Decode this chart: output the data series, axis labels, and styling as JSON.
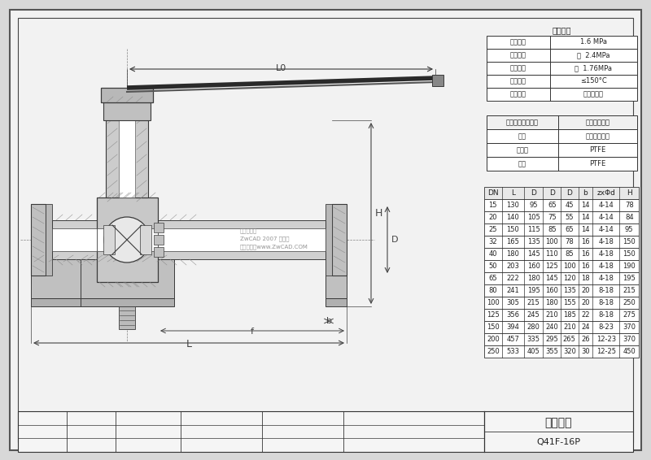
{
  "bg_color": "#d8d8d8",
  "paper_color": "#f2f2f2",
  "line_color": "#3a3a3a",
  "perf_table_title": "性能规范",
  "perf_rows": [
    [
      "公称压力",
      "1.6 MPa"
    ],
    [
      "壳体试验",
      "水  2.4MPa"
    ],
    [
      "密封试验",
      "水  1.76MPa"
    ],
    [
      "适用温度",
      "≤150°C"
    ],
    [
      "适用介质",
      "腐蚀性介质"
    ]
  ],
  "material_headers": [
    "阀体、阀盖、阀阀",
    "奥氏体不锈钢"
  ],
  "material_rows": [
    [
      "阀杆",
      "奥氏体不锈钢"
    ],
    [
      "密封面",
      "PTFE"
    ],
    [
      "填料",
      "PTFE"
    ]
  ],
  "dim_header_special": [
    "DN",
    "L",
    "D",
    "D",
    "D",
    "b",
    "zxΦd",
    "H"
  ],
  "dim_data": [
    [
      "15",
      "130",
      "95",
      "65",
      "45",
      "14",
      "4-14",
      "78"
    ],
    [
      "20",
      "140",
      "105",
      "75",
      "55",
      "14",
      "4-14",
      "84"
    ],
    [
      "25",
      "150",
      "115",
      "85",
      "65",
      "14",
      "4-14",
      "95"
    ],
    [
      "32",
      "165",
      "135",
      "100",
      "78",
      "16",
      "4-18",
      "150"
    ],
    [
      "40",
      "180",
      "145",
      "110",
      "85",
      "16",
      "4-18",
      "150"
    ],
    [
      "50",
      "203",
      "160",
      "125",
      "100",
      "16",
      "4-18",
      "190"
    ],
    [
      "65",
      "222",
      "180",
      "145",
      "120",
      "18",
      "4-18",
      "195"
    ],
    [
      "80",
      "241",
      "195",
      "160",
      "135",
      "20",
      "8-18",
      "215"
    ],
    [
      "100",
      "305",
      "215",
      "180",
      "155",
      "20",
      "8-18",
      "250"
    ],
    [
      "125",
      "356",
      "245",
      "210",
      "185",
      "22",
      "8-18",
      "275"
    ],
    [
      "150",
      "394",
      "280",
      "240",
      "210",
      "24",
      "8-23",
      "370"
    ],
    [
      "200",
      "457",
      "335",
      "295",
      "265",
      "26",
      "12-23",
      "370"
    ],
    [
      "250",
      "533",
      "405",
      "355",
      "320",
      "30",
      "12-25",
      "450"
    ]
  ],
  "title_zhuang": "总装配图",
  "drawing_num": "Q41F-16P",
  "watermark_line1": "禁止在使用",
  "watermark_line2": "ZwCAD 2007 试用版",
  "watermark_line3": "详情请查阅www.ZwCAD.COM"
}
